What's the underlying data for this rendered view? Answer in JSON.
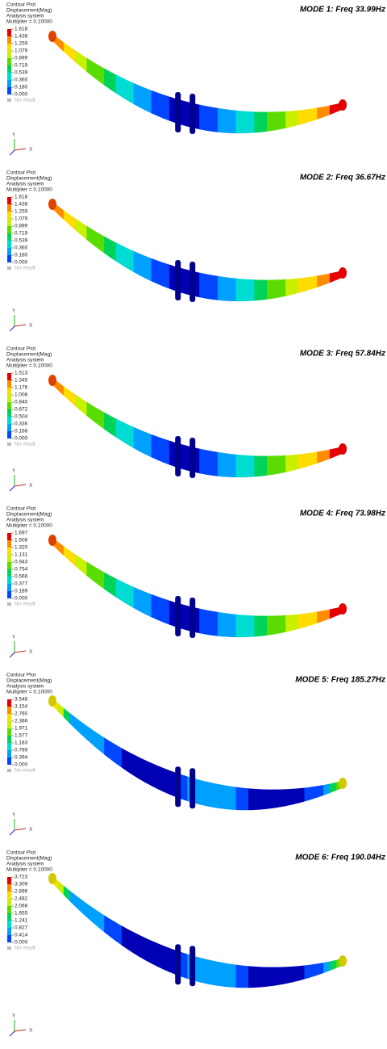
{
  "panels": [
    {
      "title": "MODE 1: Freq 33.99Hz",
      "legend": [
        "Contour Plot",
        "Displacement(Mag)",
        "Analysis system",
        "Multiplier = 0.10000"
      ],
      "scale": [
        "1.618",
        "1.438",
        "1.259",
        "1.079",
        "0.899",
        "0.719",
        "0.539",
        "0.360",
        "0.180",
        "0.000"
      ],
      "no_result": "No result",
      "axis_y": "Y",
      "axis_x": "X"
    },
    {
      "title": "MODE 2: Freq 36.67Hz",
      "legend": [
        "Contour Plot",
        "Displacement(Mag)",
        "Analysis system",
        "Multiplier = 0.10000"
      ],
      "scale": [
        "1.618",
        "1.438",
        "1.259",
        "1.079",
        "0.899",
        "0.719",
        "0.539",
        "0.360",
        "0.180",
        "0.000"
      ],
      "no_result": "No result",
      "axis_y": "Y",
      "axis_x": "X"
    },
    {
      "title": "MODE 3: Freq 57.84Hz",
      "legend": [
        "Contour Plot",
        "Displacement(Mag)",
        "Analysis system",
        "Multiplier = 0.10000"
      ],
      "scale": [
        "1.513",
        "1.345",
        "1.176",
        "1.008",
        "0.840",
        "0.672",
        "0.504",
        "0.336",
        "0.168",
        "0.000"
      ],
      "no_result": "No result",
      "axis_y": "Y",
      "axis_x": "X"
    },
    {
      "title": "MODE 4: Freq 73.98Hz",
      "legend": [
        "Contour Plot",
        "Displacement(Mag)",
        "Analysis system",
        "Multiplier = 0.10000"
      ],
      "scale": [
        "1.697",
        "1.508",
        "1.320",
        "1.131",
        "0.943",
        "0.754",
        "0.566",
        "0.377",
        "0.189",
        "0.000"
      ],
      "no_result": "No result",
      "axis_y": "Y",
      "axis_x": "X"
    },
    {
      "title": "MODE 5: Freq 185.27Hz",
      "legend": [
        "Contour Plot",
        "Displacement(Mag)",
        "Analysis system",
        "Multiplier = 0.10000"
      ],
      "scale": [
        "3.548",
        "3.154",
        "2.760",
        "2.366",
        "1.971",
        "1.577",
        "1.183",
        "0.789",
        "0.394",
        "0.000"
      ],
      "no_result": "No result",
      "axis_y": "Y",
      "axis_x": "X"
    },
    {
      "title": "MODE 6: Freq 190.04Hz",
      "legend": [
        "Contour Plot",
        "Displacement(Mag)",
        "Analysis system",
        "Multiplier = 0.10000"
      ],
      "scale": [
        "3.723",
        "3.309",
        "2.896",
        "2.482",
        "2.068",
        "1.655",
        "1.241",
        "0.827",
        "0.414",
        "0.000"
      ],
      "no_result": "No result",
      "axis_y": "Y",
      "axis_x": "X"
    }
  ]
}
